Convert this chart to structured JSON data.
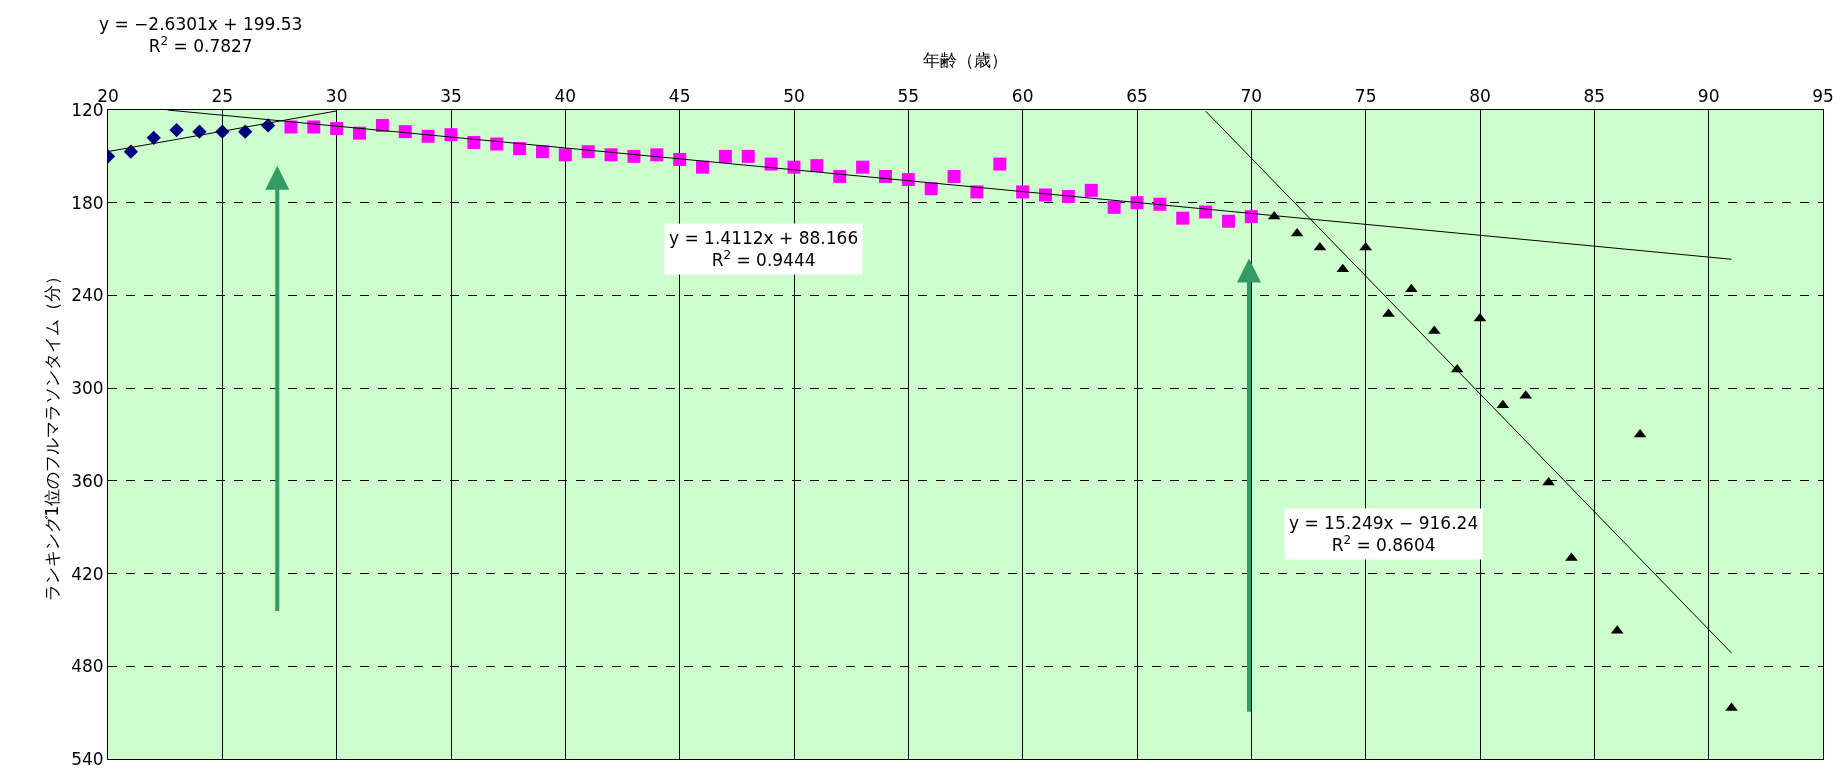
{
  "chart_data": {
    "type": "scatter",
    "xlabel": "年齢（歳）",
    "ylabel": "ランキング1位のフルマラソンタイム（分）",
    "xlim": [
      20,
      95
    ],
    "xticks": [
      20,
      25,
      30,
      35,
      40,
      45,
      50,
      55,
      60,
      65,
      70,
      75,
      80,
      85,
      90,
      95
    ],
    "ylim": [
      540,
      120
    ],
    "yticks": [
      120,
      180,
      240,
      300,
      360,
      420,
      480,
      540
    ],
    "grid": true,
    "series": [
      {
        "type": "scatter",
        "marker": "diamond",
        "color": "#000080",
        "x": [
          20,
          21,
          22,
          23,
          24,
          25,
          26,
          27
        ],
        "values": [
          150,
          147,
          138,
          133,
          134,
          134,
          134,
          130
        ]
      },
      {
        "type": "scatter",
        "marker": "square",
        "color": "#ff00ff",
        "x": [
          28,
          29,
          30,
          31,
          32,
          33,
          34,
          35,
          36,
          37,
          38,
          39,
          40,
          41,
          42,
          43,
          44,
          45,
          46,
          47,
          48,
          49,
          50,
          51,
          52,
          53,
          54,
          55,
          56,
          57,
          58,
          59,
          60,
          61,
          62,
          63,
          64,
          65,
          66,
          67,
          68,
          69,
          70
        ],
        "values": [
          131,
          131,
          132,
          135,
          130,
          134,
          137,
          136,
          141,
          142,
          145,
          147,
          149,
          147,
          149,
          150,
          149,
          152,
          157,
          150,
          150,
          155,
          157,
          156,
          163,
          157,
          163,
          165,
          171,
          163,
          173,
          155,
          173,
          175,
          176,
          172,
          183,
          180,
          181,
          190,
          186,
          192,
          189
        ]
      },
      {
        "type": "scatter",
        "marker": "triangle",
        "color": "#000000",
        "x": [
          71,
          72,
          73,
          74,
          75,
          76,
          77,
          78,
          79,
          80,
          81,
          82,
          83,
          84,
          86,
          87,
          91
        ],
        "values": [
          189,
          200,
          209,
          223,
          209,
          252,
          236,
          263,
          288,
          255,
          311,
          305,
          361,
          410,
          457,
          330,
          507
        ]
      },
      {
        "type": "line",
        "marker": "none",
        "color": "#000000",
        "x": [
          20,
          30
        ],
        "values": [
          146.9,
          120.6
        ]
      },
      {
        "type": "line",
        "marker": "none",
        "color": "#000000",
        "x": [
          22.6,
          91
        ],
        "values": [
          120,
          216.6
        ]
      },
      {
        "type": "line",
        "marker": "none",
        "color": "#000000",
        "x": [
          68,
          91
        ],
        "values": [
          120.7,
          471.4
        ]
      }
    ],
    "annotations": [
      "y = −2.6301x + 199.53\nR$^{2}$ = 0.7827",
      "y = 1.4112x + 88.166\nR$^{2}$ = 0.9444",
      "y = 15.249x − 916.24\nR$^{2}$ = 0.8604"
    ]
  }
}
